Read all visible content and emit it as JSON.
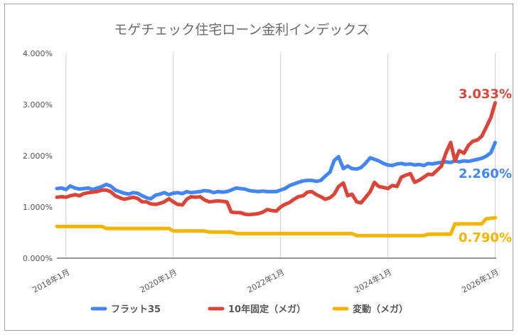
{
  "chart_data": {
    "type": "line",
    "title": "モゲチェック住宅ローン金利インデックス",
    "xlabel": "",
    "ylabel": "",
    "ylim": [
      0,
      4
    ],
    "y_ticks": [
      "0.000%",
      "1.000%",
      "2.000%",
      "3.000%",
      "4.000%"
    ],
    "x_range": [
      2018.0,
      2026.0
    ],
    "x_ticks": [
      {
        "label": "2018年1月",
        "x": 2018.0
      },
      {
        "label": "2020年1月",
        "x": 2020.0
      },
      {
        "label": "2022年1月",
        "x": 2022.0
      },
      {
        "label": "2024年1月",
        "x": 2024.0
      },
      {
        "label": "2026年1月",
        "x": 2026.0
      }
    ],
    "grid": "vertical",
    "legend": "bottom",
    "series": [
      {
        "name": "フラット35",
        "color": "#4285f4",
        "end_label": "2.260%",
        "x": [
          2017.83,
          2017.92,
          2018.0,
          2018.08,
          2018.17,
          2018.25,
          2018.33,
          2018.42,
          2018.5,
          2018.58,
          2018.67,
          2018.75,
          2018.83,
          2018.92,
          2019.0,
          2019.08,
          2019.17,
          2019.25,
          2019.33,
          2019.42,
          2019.5,
          2019.58,
          2019.67,
          2019.75,
          2019.83,
          2019.92,
          2020.0,
          2020.08,
          2020.17,
          2020.25,
          2020.33,
          2020.42,
          2020.5,
          2020.58,
          2020.67,
          2020.75,
          2020.83,
          2020.92,
          2021.0,
          2021.08,
          2021.17,
          2021.25,
          2021.33,
          2021.42,
          2021.5,
          2021.58,
          2021.67,
          2021.75,
          2021.83,
          2021.92,
          2022.0,
          2022.08,
          2022.17,
          2022.25,
          2022.33,
          2022.42,
          2022.5,
          2022.58,
          2022.67,
          2022.75,
          2022.83,
          2022.92,
          2023.0,
          2023.08,
          2023.17,
          2023.25,
          2023.33,
          2023.42,
          2023.5,
          2023.58,
          2023.67,
          2023.75,
          2023.83,
          2023.92,
          2024.0,
          2024.08,
          2024.17,
          2024.25,
          2024.33,
          2024.42,
          2024.5,
          2024.58,
          2024.67,
          2024.75,
          2024.83,
          2024.92,
          2025.0,
          2025.08,
          2025.17,
          2025.25,
          2025.33,
          2025.42,
          2025.5,
          2025.58,
          2025.67,
          2025.75,
          2025.83,
          2025.92,
          2026.0
        ],
        "y": [
          1.36,
          1.37,
          1.34,
          1.41,
          1.37,
          1.35,
          1.36,
          1.37,
          1.34,
          1.37,
          1.4,
          1.44,
          1.41,
          1.33,
          1.3,
          1.27,
          1.25,
          1.28,
          1.27,
          1.22,
          1.18,
          1.16,
          1.23,
          1.25,
          1.28,
          1.24,
          1.27,
          1.28,
          1.26,
          1.3,
          1.28,
          1.29,
          1.3,
          1.32,
          1.31,
          1.28,
          1.3,
          1.29,
          1.3,
          1.33,
          1.37,
          1.36,
          1.35,
          1.32,
          1.31,
          1.3,
          1.31,
          1.3,
          1.3,
          1.3,
          1.33,
          1.36,
          1.42,
          1.45,
          1.48,
          1.51,
          1.52,
          1.52,
          1.5,
          1.52,
          1.6,
          1.68,
          1.91,
          1.98,
          1.75,
          1.8,
          1.75,
          1.74,
          1.77,
          1.85,
          1.96,
          1.93,
          1.9,
          1.85,
          1.82,
          1.81,
          1.84,
          1.85,
          1.83,
          1.84,
          1.82,
          1.83,
          1.81,
          1.85,
          1.84,
          1.86,
          1.87,
          1.88,
          1.87,
          1.9,
          1.88,
          1.9,
          1.89,
          1.91,
          1.93,
          1.95,
          1.99,
          2.06,
          2.26
        ]
      },
      {
        "name": "10年固定（メガ）",
        "color": "#db4437",
        "end_label": "3.033%",
        "x": [
          2017.83,
          2017.92,
          2018.0,
          2018.08,
          2018.17,
          2018.25,
          2018.33,
          2018.42,
          2018.5,
          2018.58,
          2018.67,
          2018.75,
          2018.83,
          2018.92,
          2019.0,
          2019.08,
          2019.17,
          2019.25,
          2019.33,
          2019.42,
          2019.5,
          2019.58,
          2019.67,
          2019.75,
          2019.83,
          2019.92,
          2020.0,
          2020.08,
          2020.17,
          2020.25,
          2020.33,
          2020.42,
          2020.5,
          2020.58,
          2020.67,
          2020.75,
          2020.83,
          2020.92,
          2021.0,
          2021.08,
          2021.17,
          2021.25,
          2021.33,
          2021.42,
          2021.5,
          2021.58,
          2021.67,
          2021.75,
          2021.83,
          2021.92,
          2022.0,
          2022.08,
          2022.17,
          2022.25,
          2022.33,
          2022.42,
          2022.5,
          2022.58,
          2022.67,
          2022.75,
          2022.83,
          2022.92,
          2023.0,
          2023.08,
          2023.17,
          2023.25,
          2023.33,
          2023.42,
          2023.5,
          2023.58,
          2023.67,
          2023.75,
          2023.83,
          2023.92,
          2024.0,
          2024.08,
          2024.17,
          2024.25,
          2024.33,
          2024.42,
          2024.5,
          2024.58,
          2024.67,
          2024.75,
          2024.83,
          2024.92,
          2025.0,
          2025.08,
          2025.17,
          2025.25,
          2025.33,
          2025.42,
          2025.5,
          2025.58,
          2025.67,
          2025.75,
          2025.83,
          2025.92,
          2026.0
        ],
        "y": [
          1.19,
          1.2,
          1.19,
          1.22,
          1.24,
          1.22,
          1.26,
          1.28,
          1.29,
          1.3,
          1.33,
          1.33,
          1.3,
          1.22,
          1.18,
          1.15,
          1.17,
          1.19,
          1.17,
          1.1,
          1.1,
          1.06,
          1.05,
          1.07,
          1.1,
          1.16,
          1.1,
          1.05,
          1.04,
          1.15,
          1.2,
          1.19,
          1.2,
          1.14,
          1.1,
          1.11,
          1.12,
          1.11,
          1.1,
          0.9,
          0.89,
          0.89,
          0.86,
          0.85,
          0.86,
          0.87,
          0.9,
          0.95,
          0.93,
          0.92,
          1.0,
          1.05,
          1.09,
          1.15,
          1.2,
          1.22,
          1.29,
          1.3,
          1.24,
          1.2,
          1.15,
          1.18,
          1.25,
          1.4,
          1.47,
          1.22,
          1.25,
          1.1,
          1.08,
          1.18,
          1.3,
          1.48,
          1.4,
          1.38,
          1.36,
          1.42,
          1.4,
          1.58,
          1.62,
          1.65,
          1.48,
          1.52,
          1.58,
          1.64,
          1.63,
          1.72,
          1.8,
          2.05,
          2.26,
          1.9,
          2.1,
          2.05,
          2.2,
          2.28,
          2.31,
          2.38,
          2.55,
          2.75,
          3.033
        ]
      },
      {
        "name": "変動（メガ）",
        "color": "#f4b400",
        "end_label": "0.790%",
        "x": [
          2017.83,
          2018.67,
          2018.75,
          2019.92,
          2020.0,
          2020.58,
          2020.67,
          2021.08,
          2021.17,
          2023.33,
          2023.42,
          2024.67,
          2024.75,
          2025.17,
          2025.25,
          2025.75,
          2025.83,
          2026.0
        ],
        "y": [
          0.62,
          0.62,
          0.58,
          0.58,
          0.53,
          0.53,
          0.51,
          0.51,
          0.48,
          0.48,
          0.44,
          0.44,
          0.47,
          0.47,
          0.67,
          0.67,
          0.77,
          0.79
        ]
      }
    ]
  }
}
